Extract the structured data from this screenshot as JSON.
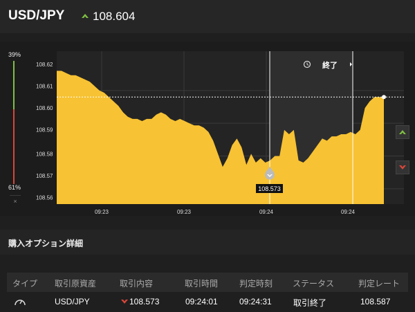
{
  "header": {
    "pair": "USD/JPY",
    "current_rate": "108.604"
  },
  "odds": {
    "up_percent": "39%",
    "down_percent": "61%",
    "close_label": "×"
  },
  "chart_data": {
    "type": "area",
    "y_ticks": [
      "108.62",
      "108.61",
      "108.60",
      "108.59",
      "108.58",
      "108.57",
      "108.56"
    ],
    "x_ticks": [
      "09:23",
      "09:23",
      "09:24",
      "09:24"
    ],
    "ylim": [
      108.555,
      108.625
    ],
    "current_level": 108.604,
    "entry_rate": "108.573",
    "end_label": "終了",
    "series": [
      {
        "values": [
          108.616,
          108.616,
          108.615,
          108.614,
          108.614,
          108.613,
          108.612,
          108.611,
          108.609,
          108.607,
          108.606,
          108.604,
          108.602,
          108.6,
          108.597,
          108.595,
          108.594,
          108.594,
          108.593,
          108.594,
          108.594,
          108.596,
          108.597,
          108.596,
          108.594,
          108.593,
          108.594,
          108.593,
          108.592,
          108.591,
          108.591,
          108.59,
          108.588,
          108.584,
          108.578,
          108.572,
          108.576,
          108.582,
          108.585,
          108.581,
          108.573,
          108.578,
          108.574,
          108.576,
          108.574,
          108.575,
          108.577,
          108.577,
          108.589,
          108.587,
          108.589,
          108.575,
          108.574,
          108.576,
          108.579,
          108.582,
          108.585,
          108.584,
          108.586,
          108.586,
          108.587,
          108.587,
          108.588,
          108.587,
          108.589,
          108.599,
          108.602,
          108.604,
          108.604,
          108.604
        ]
      }
    ]
  },
  "section": {
    "title": "購入オプション詳細"
  },
  "table": {
    "headers": [
      "タイプ",
      "取引原資産",
      "取引内容",
      "取引時間",
      "判定時刻",
      "ステータス",
      "判定レート"
    ],
    "row": {
      "asset": "USD/JPY",
      "trade": "108.573",
      "trade_time": "09:24:01",
      "judge_time": "09:24:31",
      "status": "取引終了",
      "rate": "108.587"
    }
  },
  "colors": {
    "area_fill": "#f7c233",
    "up": "#7fc043",
    "down": "#d9463a"
  }
}
